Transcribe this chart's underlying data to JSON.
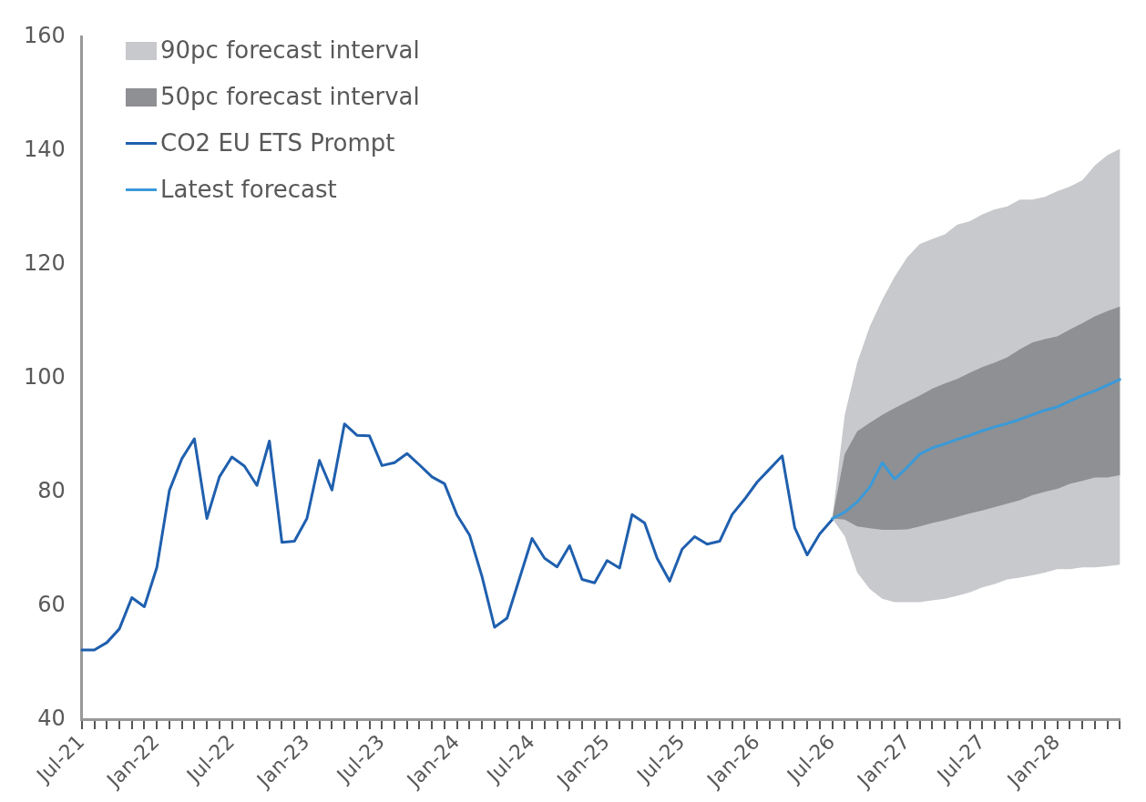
{
  "chart_data": {
    "type": "line",
    "categories": [
      "Jul-21",
      null,
      null,
      null,
      null,
      null,
      "Jan-22",
      null,
      null,
      null,
      null,
      null,
      "Jul-22",
      null,
      null,
      null,
      null,
      null,
      "Jan-23",
      null,
      null,
      null,
      null,
      null,
      "Jul-23",
      null,
      null,
      null,
      null,
      null,
      "Jan-24",
      null,
      null,
      null,
      null,
      null,
      "Jul-24",
      null,
      null,
      null,
      null,
      null,
      "Jan-25",
      null,
      null,
      null,
      null,
      null,
      "Jul-25",
      null,
      null,
      null,
      null,
      null,
      "Jan-26",
      null,
      null,
      null,
      null,
      null,
      "Jul-26",
      null,
      null,
      null,
      null,
      null,
      "Jan-27",
      null,
      null,
      null,
      null,
      null,
      "Jul-27",
      null,
      null,
      null,
      null,
      null,
      "Jan-28",
      null,
      null,
      null,
      null,
      null
    ],
    "ylim": [
      40,
      160
    ],
    "yticks": [
      40,
      60,
      80,
      100,
      120,
      140,
      160
    ],
    "legend": "top left",
    "grid": false,
    "series": [
      {
        "name": "90pc forecast interval",
        "type": "area",
        "color": "#c8c9cc",
        "lower": [
          null,
          null,
          null,
          null,
          null,
          null,
          null,
          null,
          null,
          null,
          null,
          null,
          null,
          null,
          null,
          null,
          null,
          null,
          null,
          null,
          null,
          null,
          null,
          null,
          null,
          null,
          null,
          null,
          null,
          null,
          null,
          null,
          null,
          null,
          null,
          null,
          null,
          null,
          null,
          null,
          null,
          null,
          null,
          null,
          null,
          null,
          null,
          null,
          null,
          null,
          null,
          null,
          null,
          null,
          null,
          null,
          null,
          null,
          null,
          null,
          75.4,
          72.3,
          65.9,
          63,
          61.3,
          60.7,
          60.7,
          60.7,
          61.0,
          61.3,
          61.8,
          62.4,
          63.3,
          63.9,
          64.7,
          65.0,
          65.4,
          65.9,
          66.5,
          66.5,
          66.8,
          66.8,
          67.0,
          67.3
        ],
        "values": [
          null,
          null,
          null,
          null,
          null,
          null,
          null,
          null,
          null,
          null,
          null,
          null,
          null,
          null,
          null,
          null,
          null,
          null,
          null,
          null,
          null,
          null,
          null,
          null,
          null,
          null,
          null,
          null,
          null,
          null,
          null,
          null,
          null,
          null,
          null,
          null,
          null,
          null,
          null,
          null,
          null,
          null,
          null,
          null,
          null,
          null,
          null,
          null,
          null,
          null,
          null,
          null,
          null,
          null,
          null,
          null,
          null,
          null,
          null,
          null,
          null,
          null,
          null,
          null,
          null,
          null,
          null,
          null,
          null,
          null,
          null,
          null,
          null,
          null,
          null,
          null,
          null,
          null,
          null,
          null,
          null,
          null,
          null,
          null
        ],
        "upper": [
          null,
          null,
          null,
          null,
          null,
          null,
          null,
          null,
          null,
          null,
          null,
          null,
          null,
          null,
          null,
          null,
          null,
          null,
          null,
          null,
          null,
          null,
          null,
          null,
          null,
          null,
          null,
          null,
          null,
          null,
          null,
          null,
          null,
          null,
          null,
          null,
          null,
          null,
          null,
          null,
          null,
          null,
          null,
          null,
          null,
          null,
          null,
          null,
          null,
          null,
          null,
          null,
          null,
          null,
          null,
          null,
          null,
          null,
          null,
          null,
          75.4,
          93.6,
          102.8,
          109.1,
          113.8,
          117.9,
          121.3,
          123.6,
          124.5,
          125.3,
          127,
          127.6,
          128.8,
          129.7,
          130.2,
          131.4,
          131.4,
          131.9,
          132.9,
          133.7,
          134.8,
          137.4,
          139.2,
          140.3
        ]
      },
      {
        "name": "50pc forecast interval",
        "type": "area",
        "color": "#8e9093",
        "lower": [
          null,
          null,
          null,
          null,
          null,
          null,
          null,
          null,
          null,
          null,
          null,
          null,
          null,
          null,
          null,
          null,
          null,
          null,
          null,
          null,
          null,
          null,
          null,
          null,
          null,
          null,
          null,
          null,
          null,
          null,
          null,
          null,
          null,
          null,
          null,
          null,
          null,
          null,
          null,
          null,
          null,
          null,
          null,
          null,
          null,
          null,
          null,
          null,
          null,
          null,
          null,
          null,
          null,
          null,
          null,
          null,
          null,
          null,
          null,
          null,
          75.4,
          75.2,
          74.0,
          73.7,
          73.4,
          73.4,
          73.5,
          74.0,
          74.6,
          75.1,
          75.7,
          76.3,
          76.8,
          77.4,
          78.0,
          78.6,
          79.5,
          80.1,
          80.6,
          81.5,
          82.0,
          82.6,
          82.6,
          83.0
        ],
        "values": [
          null,
          null,
          null,
          null,
          null,
          null,
          null,
          null,
          null,
          null,
          null,
          null,
          null,
          null,
          null,
          null,
          null,
          null,
          null,
          null,
          null,
          null,
          null,
          null,
          null,
          null,
          null,
          null,
          null,
          null,
          null,
          null,
          null,
          null,
          null,
          null,
          null,
          null,
          null,
          null,
          null,
          null,
          null,
          null,
          null,
          null,
          null,
          null,
          null,
          null,
          null,
          null,
          null,
          null,
          null,
          null,
          null,
          null,
          null,
          null,
          null,
          null,
          null,
          null,
          null,
          null,
          null,
          null,
          null,
          null,
          null,
          null,
          null,
          null,
          null,
          null,
          null,
          null,
          null,
          null,
          null,
          null,
          null,
          null
        ],
        "upper": [
          null,
          null,
          null,
          null,
          null,
          null,
          null,
          null,
          null,
          null,
          null,
          null,
          null,
          null,
          null,
          null,
          null,
          null,
          null,
          null,
          null,
          null,
          null,
          null,
          null,
          null,
          null,
          null,
          null,
          null,
          null,
          null,
          null,
          null,
          null,
          null,
          null,
          null,
          null,
          null,
          null,
          null,
          null,
          null,
          null,
          null,
          null,
          null,
          null,
          null,
          null,
          null,
          null,
          null,
          null,
          null,
          null,
          null,
          null,
          null,
          75.4,
          86.7,
          90.7,
          92.2,
          93.6,
          94.8,
          95.9,
          97.0,
          98.2,
          99.1,
          99.9,
          101,
          102,
          102.8,
          103.7,
          105.1,
          106.3,
          106.9,
          107.4,
          108.6,
          109.7,
          110.9,
          111.8,
          112.6
        ]
      },
      {
        "name": "CO2 EU ETS Prompt",
        "type": "line",
        "color": "#1f5fae",
        "values": [
          52.3,
          52.3,
          53.6,
          56.0,
          61.5,
          59.9,
          66.8,
          80.3,
          85.9,
          89.4,
          75.4,
          82.7,
          86.2,
          84.6,
          81.2,
          89.0,
          71.2,
          71.4,
          75.4,
          85.6,
          80.4,
          92.0,
          90.0,
          89.9,
          84.7,
          85.2,
          86.8,
          84.8,
          82.7,
          81.5,
          76.0,
          72.5,
          65.2,
          56.3,
          57.9,
          64.9,
          71.9,
          68.4,
          66.9,
          70.6,
          64.7,
          64.1,
          68.0,
          66.7,
          76.1,
          74.6,
          68.4,
          64.4,
          70.0,
          72.2,
          70.9,
          71.4,
          76.1,
          78.8,
          81.8,
          84.1,
          86.4,
          73.8,
          69.0,
          72.7,
          75.2,
          null,
          null,
          null,
          null,
          null,
          null,
          null,
          null,
          null,
          null,
          null,
          null,
          null,
          null,
          null,
          null,
          null,
          null,
          null,
          null,
          null,
          null,
          null
        ]
      },
      {
        "name": "Latest forecast",
        "type": "line",
        "color": "#3a9ad9",
        "values": [
          null,
          null,
          null,
          null,
          null,
          null,
          null,
          null,
          null,
          null,
          null,
          null,
          null,
          null,
          null,
          null,
          null,
          null,
          null,
          null,
          null,
          null,
          null,
          null,
          null,
          null,
          null,
          null,
          null,
          null,
          null,
          null,
          null,
          null,
          null,
          null,
          null,
          null,
          null,
          null,
          null,
          null,
          null,
          null,
          null,
          null,
          null,
          null,
          null,
          null,
          null,
          null,
          null,
          null,
          null,
          null,
          null,
          null,
          null,
          null,
          75.4,
          76.5,
          78.3,
          80.9,
          85.2,
          82.3,
          84.4,
          86.7,
          87.8,
          88.5,
          89.3,
          90.0,
          90.8,
          91.5,
          92.1,
          92.8,
          93.6,
          94.4,
          95.0,
          96.0,
          97.0,
          97.8,
          98.8,
          99.8
        ]
      }
    ]
  }
}
